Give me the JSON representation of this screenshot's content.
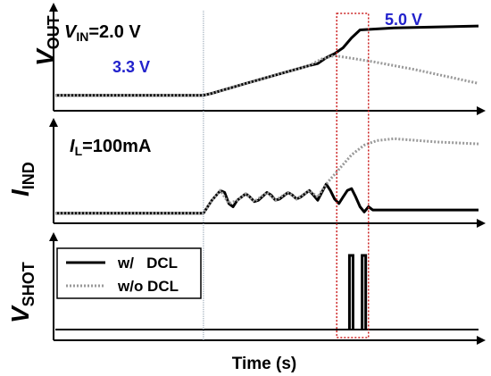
{
  "figure": {
    "xlabel": "Time (s)",
    "legend": [
      {
        "label": "w/   DCL",
        "style": "solid",
        "color": "#000000"
      },
      {
        "label": "w/o DCL",
        "style": "dotted",
        "color": "#999999"
      }
    ],
    "colors": {
      "solid": "#000000",
      "dotted": "#999999",
      "highlight": "#cc2222",
      "callout": "#2222cc",
      "divider": "#8899aa"
    }
  },
  "chart_data": [
    {
      "type": "line",
      "ylabel_main": "V",
      "ylabel_sub": "OUT",
      "condition": {
        "symbol": "V",
        "sub": "IN",
        "rest": "=2.0 V"
      },
      "callouts": [
        "3.3 V",
        "5.0 V"
      ],
      "series": [
        {
          "name": "w/   DCL",
          "style": "solid",
          "points": [
            [
              0,
              3.3
            ],
            [
              0.35,
              3.3
            ],
            [
              0.37,
              3.35
            ],
            [
              0.45,
              3.6
            ],
            [
              0.55,
              3.9
            ],
            [
              0.6,
              4.05
            ],
            [
              0.62,
              4.1
            ],
            [
              0.64,
              4.25
            ],
            [
              0.66,
              4.35
            ],
            [
              0.68,
              4.5
            ],
            [
              0.7,
              4.75
            ],
            [
              0.72,
              4.95
            ],
            [
              0.8,
              5.0
            ],
            [
              1.0,
              5.05
            ]
          ]
        },
        {
          "name": "w/o DCL",
          "style": "dotted",
          "points": [
            [
              0,
              3.3
            ],
            [
              0.35,
              3.3
            ],
            [
              0.37,
              3.35
            ],
            [
              0.45,
              3.6
            ],
            [
              0.55,
              3.9
            ],
            [
              0.6,
              4.05
            ],
            [
              0.63,
              4.22
            ],
            [
              0.66,
              4.3
            ],
            [
              0.75,
              4.15
            ],
            [
              0.85,
              3.95
            ],
            [
              1.0,
              3.6
            ]
          ]
        }
      ]
    },
    {
      "type": "line",
      "ylabel_main": "I",
      "ylabel_sub": "IND",
      "condition": {
        "symbol": "I",
        "sub": "L",
        "rest": "=100mA"
      },
      "series": [
        {
          "name": "w/   DCL",
          "style": "solid",
          "points": [
            [
              0,
              0.1
            ],
            [
              0.35,
              0.1
            ],
            [
              0.37,
              0.3
            ],
            [
              0.39,
              0.45
            ],
            [
              0.4,
              0.42
            ],
            [
              0.41,
              0.25
            ],
            [
              0.42,
              0.2
            ],
            [
              0.43,
              0.3
            ],
            [
              0.45,
              0.4
            ],
            [
              0.46,
              0.35
            ],
            [
              0.47,
              0.28
            ],
            [
              0.48,
              0.3
            ],
            [
              0.5,
              0.42
            ],
            [
              0.51,
              0.38
            ],
            [
              0.52,
              0.3
            ],
            [
              0.53,
              0.32
            ],
            [
              0.55,
              0.42
            ],
            [
              0.56,
              0.38
            ],
            [
              0.57,
              0.32
            ],
            [
              0.58,
              0.35
            ],
            [
              0.6,
              0.45
            ],
            [
              0.61,
              0.38
            ],
            [
              0.62,
              0.3
            ],
            [
              0.64,
              0.55
            ],
            [
              0.65,
              0.45
            ],
            [
              0.66,
              0.32
            ],
            [
              0.67,
              0.25
            ],
            [
              0.68,
              0.35
            ],
            [
              0.69,
              0.45
            ],
            [
              0.7,
              0.48
            ],
            [
              0.71,
              0.35
            ],
            [
              0.72,
              0.2
            ],
            [
              0.73,
              0.12
            ],
            [
              0.74,
              0.2
            ],
            [
              0.75,
              0.15
            ],
            [
              0.8,
              0.15
            ],
            [
              1.0,
              0.15
            ]
          ]
        },
        {
          "name": "w/o DCL",
          "style": "dotted",
          "points": [
            [
              0,
              0.1
            ],
            [
              0.35,
              0.1
            ],
            [
              0.37,
              0.3
            ],
            [
              0.39,
              0.45
            ],
            [
              0.41,
              0.25
            ],
            [
              0.43,
              0.3
            ],
            [
              0.45,
              0.4
            ],
            [
              0.47,
              0.28
            ],
            [
              0.5,
              0.42
            ],
            [
              0.52,
              0.3
            ],
            [
              0.55,
              0.42
            ],
            [
              0.57,
              0.32
            ],
            [
              0.6,
              0.45
            ],
            [
              0.62,
              0.35
            ],
            [
              0.64,
              0.55
            ],
            [
              0.66,
              0.7
            ],
            [
              0.68,
              0.85
            ],
            [
              0.7,
              1.0
            ],
            [
              0.73,
              1.15
            ],
            [
              0.76,
              1.22
            ],
            [
              0.8,
              1.25
            ],
            [
              0.9,
              1.2
            ],
            [
              1.0,
              1.17
            ]
          ]
        }
      ]
    },
    {
      "type": "line",
      "ylabel_main": "V",
      "ylabel_sub": "SHOT",
      "series": [
        {
          "name": "w/   DCL",
          "style": "solid",
          "pulses": [
            0.695,
            0.725
          ]
        }
      ]
    }
  ],
  "highlight": {
    "t_start": 0.665,
    "t_end": 0.74
  },
  "divider": {
    "t": 0.35
  }
}
